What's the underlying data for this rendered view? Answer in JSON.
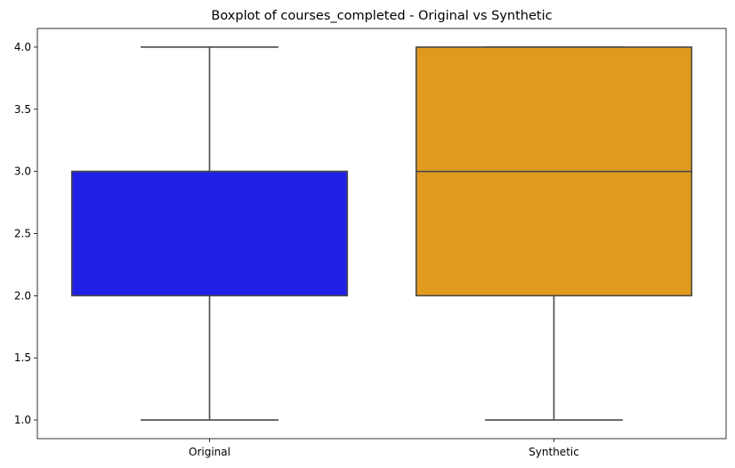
{
  "chart_data": {
    "type": "boxplot",
    "title": "Boxplot of courses_completed - Original vs Synthetic",
    "xlabel": "",
    "ylabel": "",
    "ylim": [
      0.85,
      4.15
    ],
    "yticks": [
      "1.0",
      "1.5",
      "2.0",
      "2.5",
      "3.0",
      "3.5",
      "4.0"
    ],
    "categories": [
      "Original",
      "Synthetic"
    ],
    "boxes": [
      {
        "category": "Original",
        "min": 1.0,
        "q1": 2.0,
        "median": 3.0,
        "q3": 3.0,
        "max": 4.0,
        "color": "#1f1fe6"
      },
      {
        "category": "Synthetic",
        "min": 1.0,
        "q1": 2.0,
        "median": 3.0,
        "q3": 4.0,
        "max": 4.0,
        "color": "#e09b1f"
      }
    ],
    "line_color": "#4a4a4a",
    "grid": false,
    "legend": "none"
  }
}
